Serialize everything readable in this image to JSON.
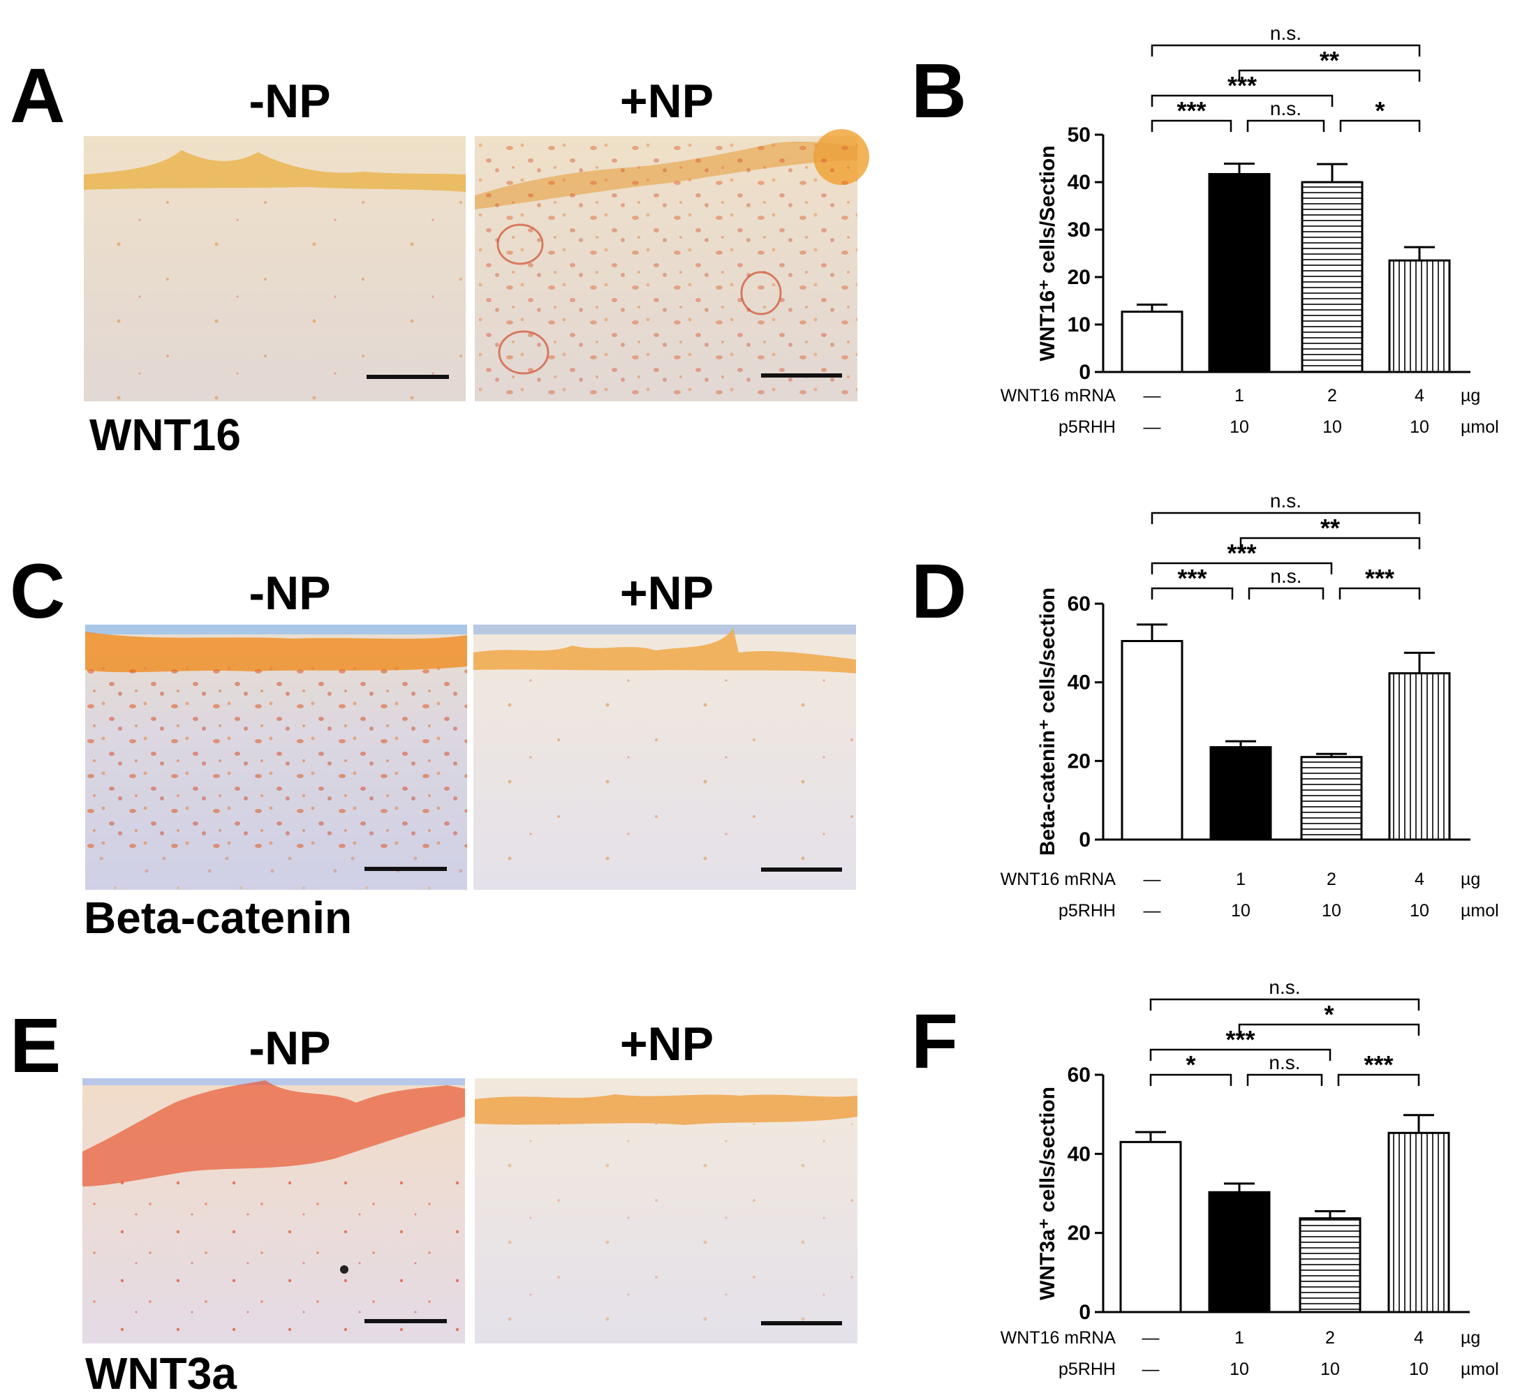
{
  "micrographs": [
    {
      "letter": "A",
      "stain": "WNT16",
      "left_label": "-NP",
      "right_label": "+NP",
      "left_image": "immunostained tissue section (-NP)",
      "right_image": "immunostained tissue section (+NP)"
    },
    {
      "letter": "C",
      "stain": "Beta-catenin",
      "left_label": "-NP",
      "right_label": "+NP",
      "left_image": "immunostained tissue section (-NP)",
      "right_image": "immunostained tissue section (+NP)"
    },
    {
      "letter": "E",
      "stain": "WNT3a",
      "left_label": "-NP",
      "right_label": "+NP",
      "left_image": "immunostained tissue section (-NP)",
      "right_image": "immunostained tissue section (+NP)"
    }
  ],
  "conditions": {
    "row1_label": "WNT16 mRNA",
    "row1_values": [
      "—",
      "1",
      "2",
      "4"
    ],
    "row1_unit": "µg",
    "row2_label": "p5RHH",
    "row2_values": [
      "—",
      "10",
      "10",
      "10"
    ],
    "row2_unit": "µmol"
  },
  "chart_data": [
    {
      "panel": "B",
      "type": "bar",
      "ylabel": "WNT16⁺ cells/Section",
      "ylim": [
        0,
        50
      ],
      "yticks": [
        "0",
        "10",
        "20",
        "30",
        "40",
        "50"
      ],
      "categories": [
        "control",
        "WNT16 mRNA 1 µg + p5RHH 10 µmol",
        "WNT16 mRNA 2 µg + p5RHH 10 µmol",
        "WNT16 mRNA 4 µg + p5RHH 10 µmol"
      ],
      "fills": [
        "open",
        "solid",
        "horizontal stripes",
        "vertical stripes"
      ],
      "values": [
        12.7,
        41.7,
        40.0,
        23.5
      ],
      "errors": [
        1.5,
        2.2,
        3.8,
        2.8
      ],
      "significance": [
        {
          "from": 0,
          "to": 3,
          "label": "n.s."
        },
        {
          "from": 1,
          "to": 3,
          "label": "**"
        },
        {
          "from": 0,
          "to": 2,
          "label": "***"
        },
        {
          "from": 0,
          "to": 1,
          "label": "***"
        },
        {
          "from": 1,
          "to": 2,
          "label": "n.s."
        },
        {
          "from": 2,
          "to": 3,
          "label": "*"
        }
      ]
    },
    {
      "panel": "D",
      "type": "bar",
      "ylabel": "Beta-catenin⁺ cells/section",
      "ylim": [
        0,
        60
      ],
      "yticks": [
        "0",
        "20",
        "40",
        "60"
      ],
      "categories": [
        "control",
        "WNT16 mRNA 1 µg + p5RHH 10 µmol",
        "WNT16 mRNA 2 µg + p5RHH 10 µmol",
        "WNT16 mRNA 4 µg + p5RHH 10 µmol"
      ],
      "fills": [
        "open",
        "solid",
        "horizontal stripes",
        "vertical stripes"
      ],
      "values": [
        50.5,
        23.5,
        21.0,
        42.3
      ],
      "errors": [
        4.2,
        1.5,
        0.8,
        5.2
      ],
      "significance": [
        {
          "from": 0,
          "to": 3,
          "label": "n.s."
        },
        {
          "from": 1,
          "to": 3,
          "label": "**"
        },
        {
          "from": 0,
          "to": 2,
          "label": "***"
        },
        {
          "from": 0,
          "to": 1,
          "label": "***"
        },
        {
          "from": 1,
          "to": 2,
          "label": "n.s."
        },
        {
          "from": 2,
          "to": 3,
          "label": "***"
        }
      ]
    },
    {
      "panel": "F",
      "type": "bar",
      "ylabel": "WNT3a⁺ cells/section",
      "ylim": [
        0,
        60
      ],
      "yticks": [
        "0",
        "20",
        "40",
        "60"
      ],
      "categories": [
        "control",
        "WNT16 mRNA 1 µg + p5RHH 10 µmol",
        "WNT16 mRNA 2 µg + p5RHH 10 µmol",
        "WNT16 mRNA 4 µg + p5RHH 10 µmol"
      ],
      "fills": [
        "open",
        "solid",
        "horizontal stripes",
        "vertical stripes"
      ],
      "values": [
        43.0,
        30.3,
        23.7,
        45.3
      ],
      "errors": [
        2.5,
        2.2,
        1.8,
        4.5
      ],
      "significance": [
        {
          "from": 0,
          "to": 3,
          "label": "n.s."
        },
        {
          "from": 1,
          "to": 3,
          "label": "*"
        },
        {
          "from": 0,
          "to": 2,
          "label": "***"
        },
        {
          "from": 0,
          "to": 1,
          "label": "*"
        },
        {
          "from": 1,
          "to": 2,
          "label": "n.s."
        },
        {
          "from": 2,
          "to": 3,
          "label": "***"
        }
      ]
    }
  ]
}
